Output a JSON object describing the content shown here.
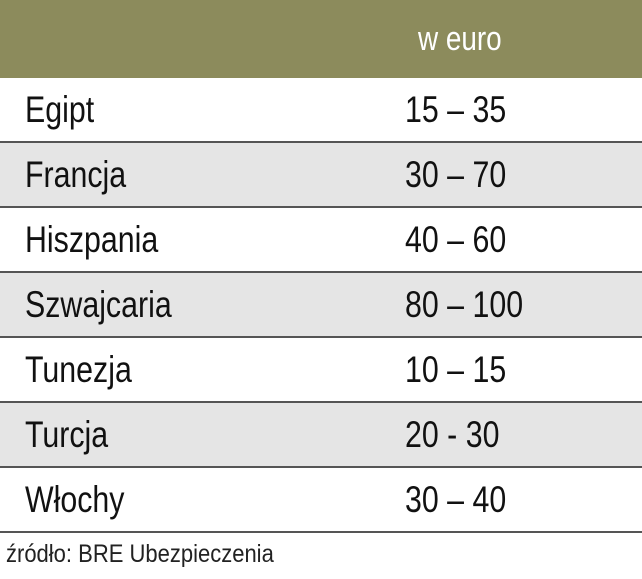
{
  "header": {
    "column": "w euro"
  },
  "table": {
    "rows": [
      [
        "Egipt",
        "15 – 35"
      ],
      [
        "Francja",
        "30 – 70"
      ],
      [
        "Hiszpania",
        "40 – 60"
      ],
      [
        "Szwajcaria",
        "80 – 100"
      ],
      [
        "Tunezja",
        "10 – 15"
      ],
      [
        "Turcja",
        "20 - 30"
      ],
      [
        "Włochy",
        "30 – 40"
      ]
    ]
  },
  "source": "źródło: BRE Ubezpieczenia"
}
